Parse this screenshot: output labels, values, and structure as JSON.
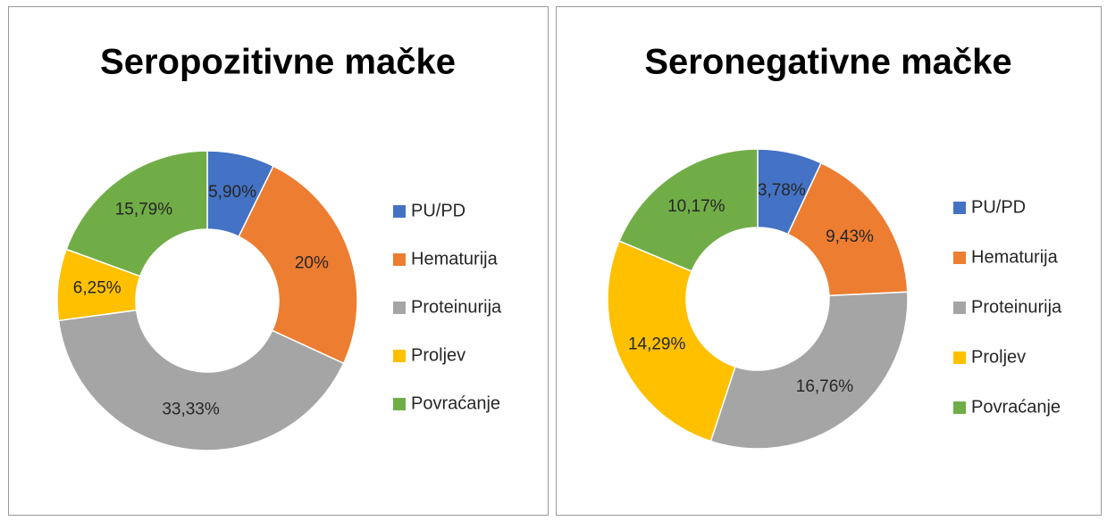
{
  "chart_data": [
    {
      "type": "donut",
      "title": "Seropozitivne mačke",
      "categories": [
        "PU/PD",
        "Hematurija",
        "Proteinurija",
        "Proljev",
        "Povraćanje"
      ],
      "values": [
        5.9,
        20,
        33.33,
        6.25,
        15.79
      ],
      "value_labels": [
        "5,90%",
        "20%",
        "33,33%",
        "6,25%",
        "15,79%"
      ],
      "colors": [
        "#4472c4",
        "#ed7d31",
        "#a5a5a5",
        "#ffc000",
        "#70ad47"
      ],
      "legend": "right"
    },
    {
      "type": "donut",
      "title": "Seronegativne mačke",
      "categories": [
        "PU/PD",
        "Hematurija",
        "Proteinurija",
        "Proljev",
        "Povraćanje"
      ],
      "values": [
        3.78,
        9.43,
        16.76,
        14.29,
        10.17
      ],
      "value_labels": [
        "3,78%",
        "9,43%",
        "16,76%",
        "14,29%",
        "10,17%"
      ],
      "colors": [
        "#4472c4",
        "#ed7d31",
        "#a5a5a5",
        "#ffc000",
        "#70ad47"
      ],
      "legend": "right"
    }
  ]
}
